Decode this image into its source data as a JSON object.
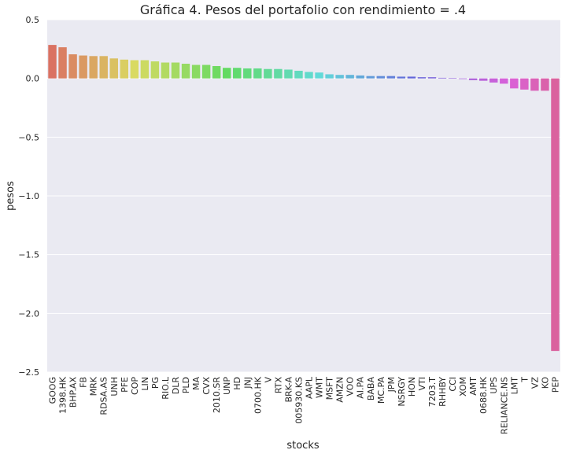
{
  "chart_data": {
    "type": "bar",
    "title": "Gráfica 4. Pesos del portafolio con rendimiento = .4",
    "xlabel": "stocks",
    "ylabel": "pesos",
    "ylim": [
      -2.5,
      0.5
    ],
    "yticks": [
      0.5,
      0.0,
      -0.5,
      -1.0,
      -1.5,
      -2.0,
      -2.5
    ],
    "ytick_labels": [
      "0.5",
      "0.0",
      "−0.5",
      "−1.0",
      "−1.5",
      "−2.0",
      "−2.5"
    ],
    "grid": true,
    "categories": [
      "GOOG",
      "1398.HK",
      "BHP.AX",
      "FB",
      "MRK",
      "RDSA.AS",
      "UNH",
      "PFE",
      "COP",
      "LIN",
      "PG",
      "RIO.L",
      "DLR",
      "PLD",
      "MA",
      "CVX",
      "2010.SR",
      "UNP",
      "HD",
      "JNJ",
      "0700.HK",
      "V",
      "RTX",
      "BRK-A",
      "005930.KS",
      "AAPL",
      "WMT",
      "MSFT",
      "AMZN",
      "VOO",
      "AI.PA",
      "BABA",
      "MC.PA",
      "JPM",
      "NSRGY",
      "HON",
      "VTI",
      "7203.T",
      "RHHBY",
      "CCI",
      "XOM",
      "AMT",
      "0688.HK",
      "UPS",
      "RELIANCE.NS",
      "LMT",
      "T",
      "VZ",
      "KO",
      "PEP"
    ],
    "values": [
      0.285,
      0.265,
      0.205,
      0.195,
      0.19,
      0.19,
      0.17,
      0.16,
      0.155,
      0.155,
      0.145,
      0.135,
      0.135,
      0.125,
      0.115,
      0.115,
      0.105,
      0.09,
      0.09,
      0.085,
      0.085,
      0.08,
      0.08,
      0.075,
      0.065,
      0.055,
      0.05,
      0.035,
      0.03,
      0.03,
      0.025,
      0.02,
      0.02,
      0.02,
      0.015,
      0.015,
      0.01,
      0.01,
      0.005,
      0.003,
      -0.005,
      -0.015,
      -0.02,
      -0.035,
      -0.045,
      -0.085,
      -0.095,
      -0.105,
      -0.105,
      -2.32
    ]
  }
}
